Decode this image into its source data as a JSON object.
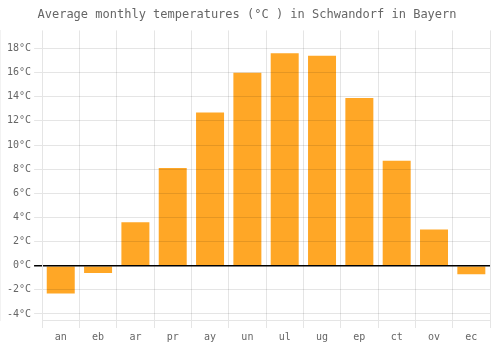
{
  "chart_data": {
    "type": "bar",
    "title": "Average monthly temperatures (°C ) in Schwandorf in Bayern",
    "categories": [
      "an",
      "eb",
      "ar",
      "pr",
      "ay",
      "un",
      "ul",
      "ug",
      "ep",
      "ct",
      "ov",
      "ec"
    ],
    "values": [
      -2.3,
      -0.6,
      3.6,
      8.1,
      12.7,
      16.0,
      17.6,
      17.4,
      13.9,
      8.7,
      3.0,
      -0.7
    ],
    "color": "#FFA726",
    "ylim": [
      -4.5,
      19.5
    ],
    "yticks": [
      {
        "value": -4,
        "label": "-4°C"
      },
      {
        "value": -2,
        "label": "-2°C"
      },
      {
        "value": 0,
        "label": "0°C"
      },
      {
        "value": 2,
        "label": "2°C"
      },
      {
        "value": 4,
        "label": "4°C"
      },
      {
        "value": 6,
        "label": "6°C"
      },
      {
        "value": 8,
        "label": "8°C"
      },
      {
        "value": 10,
        "label": "10°C"
      },
      {
        "value": 12,
        "label": "12°C"
      },
      {
        "value": 14,
        "label": "14°C"
      },
      {
        "value": 16,
        "label": "16°C"
      },
      {
        "value": 18,
        "label": "18°C"
      }
    ],
    "grid": true
  }
}
